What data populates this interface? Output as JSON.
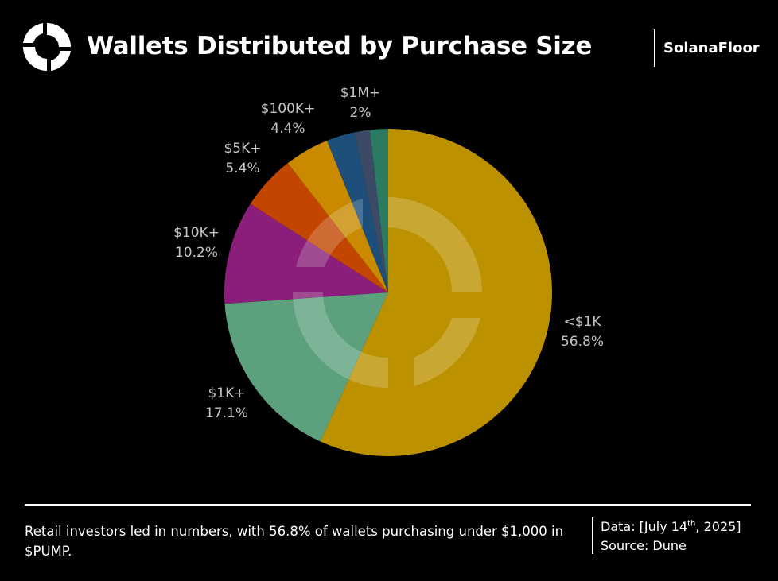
{
  "header": {
    "title": "Wallets Distributed by Purchase Size",
    "brand": "SolanaFloor"
  },
  "chart_data": {
    "type": "pie",
    "title": "Wallets Distributed by Purchase Size",
    "start_angle_deg": 0,
    "direction": "clockwise",
    "slices": [
      {
        "label": "<$1K",
        "percent_label": "56.8%",
        "value": 56.8,
        "color": "#bc9100"
      },
      {
        "label": "$1K+",
        "percent_label": "17.1%",
        "value": 17.1,
        "color": "#5da07d"
      },
      {
        "label": "$10K+",
        "percent_label": "10.2%",
        "value": 10.2,
        "color": "#8a1e7a"
      },
      {
        "label": "$5K+",
        "percent_label": "5.4%",
        "value": 5.4,
        "color": "#c24500"
      },
      {
        "label": "$100K+",
        "percent_label": "4.4%",
        "value": 4.4,
        "color": "#c98a00"
      },
      {
        "label": "",
        "percent_label": "",
        "value": 2.8,
        "color": "#1d4f7a"
      },
      {
        "label": "",
        "percent_label": "",
        "value": 1.5,
        "color": "#3d4a66"
      },
      {
        "label": "$1M+",
        "percent_label": "2%",
        "value": 1.8,
        "color": "#2b7a62"
      }
    ]
  },
  "footer": {
    "caption": "Retail investors led in numbers, with 56.8% of wallets purchasing under $1,000 in $PUMP.",
    "data_prefix": "Data: [July 14",
    "data_sup": "th",
    "data_suffix": ", 2025]",
    "source": "Source: Dune"
  }
}
